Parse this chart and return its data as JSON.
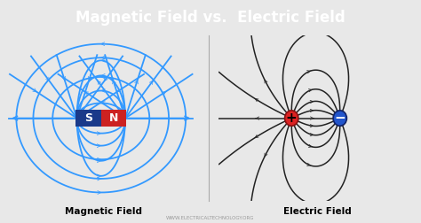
{
  "title": "Magnetic Field vs.  Electric Field",
  "title_color": "#ffffff",
  "title_bg": "#111111",
  "bg_color": "#e8e8e8",
  "left_label": "Magnetic Field",
  "right_label": "Electric Field",
  "watermark": "WWW.ELECTRICALTECHNOLOGY.ORG",
  "s_color": "#1a3a8a",
  "n_color": "#cc2222",
  "s_text": "S",
  "n_text": "N",
  "plus_color": "#dd2222",
  "minus_color": "#2255cc",
  "field_color_mag": "#3399ff",
  "field_color_elec": "#222222",
  "lw_mag": 1.3,
  "lw_elec": 1.1
}
